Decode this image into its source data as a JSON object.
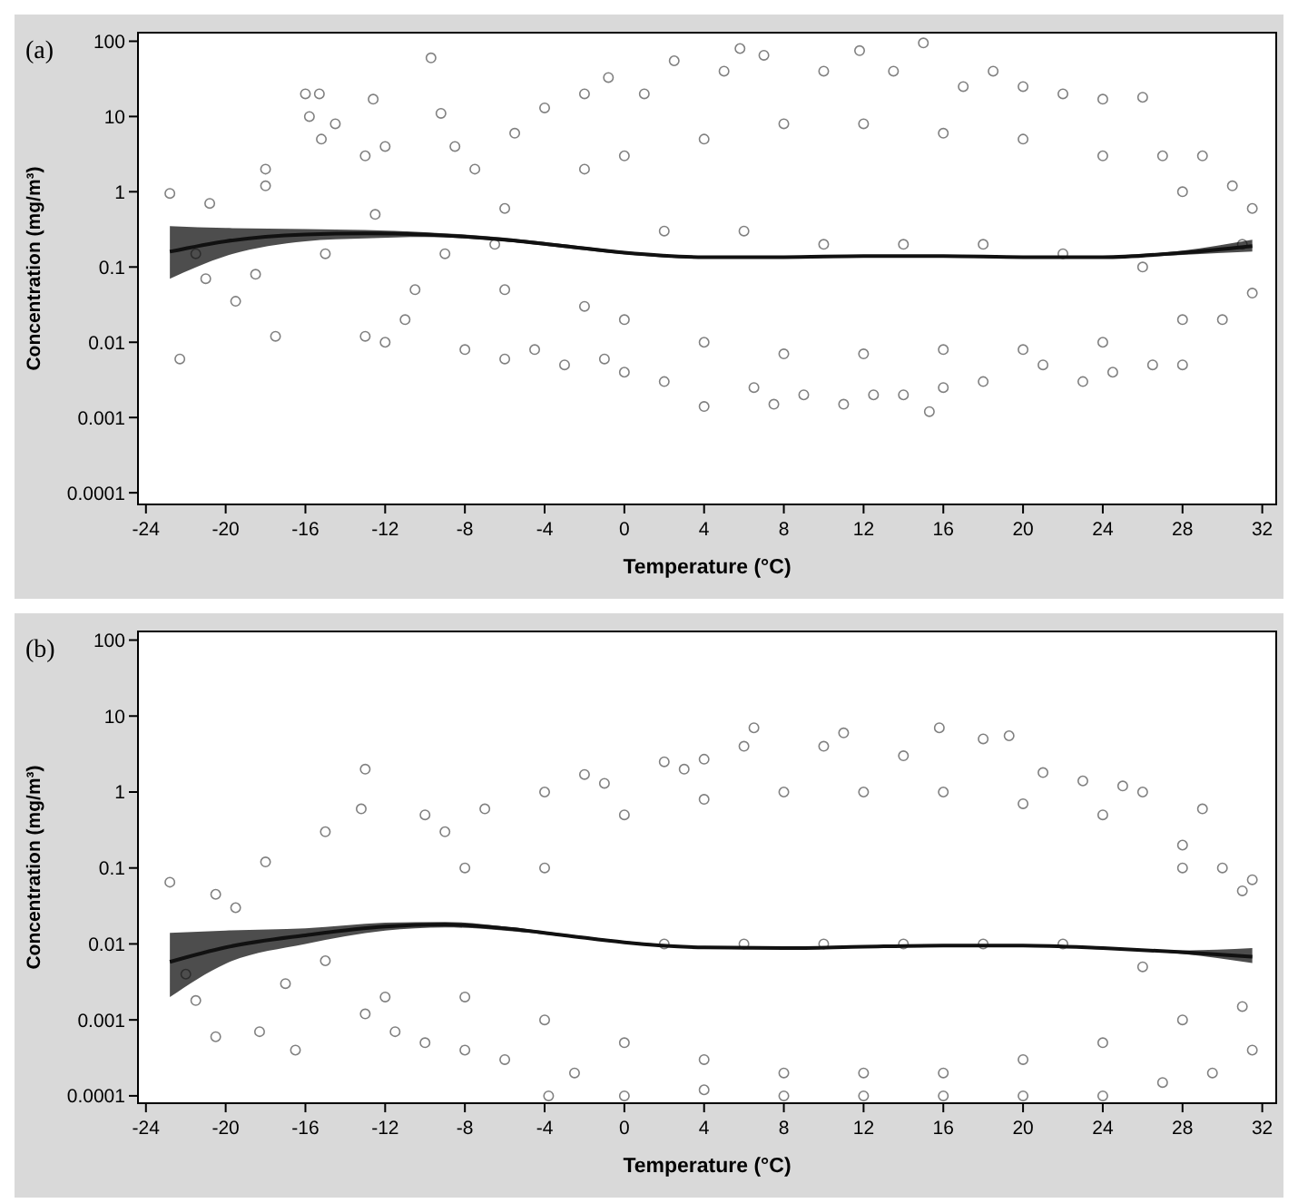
{
  "chart_data": [
    {
      "type": "scatter",
      "title": "(a)",
      "xlabel": "Temperature (°C)",
      "ylabel": "Concentration (mg/m³)",
      "log": "y",
      "xlim": [
        -24.4,
        32.7
      ],
      "xticks": [
        -24,
        -20,
        -16,
        -12,
        -8,
        -4,
        0,
        4,
        8,
        12,
        16,
        20,
        24,
        28,
        32
      ],
      "ylim": [
        7e-05,
        130
      ],
      "yticks": [
        100,
        10,
        1,
        0.1,
        0.01,
        0.001,
        0.0001
      ],
      "series": [
        {
          "marker": "circle",
          "color": "#808080",
          "x": [
            -22.8,
            -22.3,
            -21.5,
            -21,
            -20.8,
            -19.5,
            -18.5,
            -18,
            -18,
            -17.5,
            -16,
            -15.8,
            -15.3,
            -15.2,
            -15,
            -14.5,
            -13,
            -13,
            -12.6,
            -12.5,
            -12,
            -12,
            -11,
            -10.5,
            -9.7,
            -9.2,
            -9,
            -8.5,
            -8,
            -7.5,
            -6.5,
            -6,
            -5.5,
            -4.5,
            -4,
            -3,
            -2,
            -1,
            -0.8,
            0,
            1,
            2,
            2.5,
            4,
            5,
            5.8,
            6.5,
            7,
            7.5,
            9,
            10,
            11,
            11.8,
            12.5,
            13.5,
            14,
            15,
            15.3,
            16,
            17,
            18,
            18.5,
            20,
            21,
            22,
            23,
            24,
            24.5,
            26,
            26.5,
            27,
            28,
            29,
            30,
            30.5,
            31.5,
            31.5,
            31,
            0,
            0,
            4,
            4,
            8,
            8,
            12,
            12,
            16,
            16,
            20,
            20,
            24,
            24,
            28,
            28,
            2,
            6,
            10,
            14,
            18,
            22,
            26,
            -2,
            -2,
            -6,
            -6
          ],
          "values": [
            0.95,
            0.006,
            0.15,
            0.07,
            0.7,
            0.035,
            0.08,
            2,
            1.2,
            0.012,
            20,
            10,
            20,
            5,
            0.15,
            8,
            0.012,
            3,
            17,
            0.5,
            0.01,
            4,
            0.02,
            0.05,
            60,
            11,
            0.15,
            4,
            0.008,
            2,
            0.2,
            0.006,
            6,
            0.008,
            13,
            0.005,
            20,
            0.006,
            33,
            0.004,
            20,
            0.003,
            55,
            0.0014,
            40,
            80,
            0.0025,
            65,
            0.0015,
            0.002,
            40,
            0.0015,
            75,
            0.002,
            40,
            0.002,
            95,
            0.0012,
            0.0025,
            25,
            0.003,
            40,
            25,
            0.005,
            20,
            0.003,
            17,
            0.004,
            18,
            0.005,
            3,
            0.005,
            3,
            0.02,
            1.2,
            0.6,
            0.045,
            0.2,
            3,
            0.02,
            5,
            0.01,
            8,
            0.007,
            8,
            0.007,
            6,
            0.008,
            5,
            0.008,
            3,
            0.01,
            1,
            0.02,
            0.3,
            0.3,
            0.2,
            0.2,
            0.2,
            0.15,
            0.1,
            2,
            0.03,
            0.6,
            0.05
          ]
        },
        {
          "type": "line",
          "color": "#111111",
          "line_style": "solid",
          "x": [
            -22.8,
            -20,
            -16,
            -13,
            -10,
            -6,
            -3,
            0,
            4,
            8,
            12,
            16,
            20,
            24,
            28,
            31.5
          ],
          "values": [
            0.16,
            0.22,
            0.27,
            0.28,
            0.27,
            0.23,
            0.19,
            0.155,
            0.135,
            0.135,
            0.14,
            0.14,
            0.135,
            0.135,
            0.155,
            0.19
          ],
          "lower": [
            0.07,
            0.14,
            0.22,
            0.24,
            0.25,
            0.22,
            0.18,
            0.148,
            0.13,
            0.13,
            0.135,
            0.135,
            0.13,
            0.13,
            0.145,
            0.16
          ],
          "upper": [
            0.35,
            0.33,
            0.32,
            0.31,
            0.29,
            0.245,
            0.2,
            0.162,
            0.14,
            0.14,
            0.145,
            0.145,
            0.14,
            0.14,
            0.165,
            0.23
          ]
        }
      ]
    },
    {
      "type": "scatter",
      "title": "(b)",
      "xlabel": "Temperature (°C)",
      "ylabel": "Concentration (mg/m³)",
      "log": "y",
      "xlim": [
        -24.4,
        32.7
      ],
      "xticks": [
        -24,
        -20,
        -16,
        -12,
        -8,
        -4,
        0,
        4,
        8,
        12,
        16,
        20,
        24,
        28,
        32
      ],
      "ylim": [
        8e-05,
        130
      ],
      "yticks": [
        100,
        10,
        1,
        0.1,
        0.01,
        0.001,
        0.0001
      ],
      "series": [
        {
          "marker": "circle",
          "color": "#808080",
          "x": [
            -22.8,
            -22,
            -21.5,
            -20.5,
            -20.5,
            -19.5,
            -18.3,
            -18,
            -17,
            -16.5,
            -15,
            -15,
            -13,
            -13,
            -13.2,
            -12,
            -11.5,
            -10,
            -10,
            -9,
            -8,
            -7,
            -6,
            -4,
            -3.8,
            -2,
            -2.5,
            -1,
            0,
            2,
            3,
            4,
            4,
            6,
            6.5,
            8,
            10,
            11,
            12,
            14,
            15.8,
            16,
            18,
            19.3,
            20,
            21,
            23,
            24,
            25,
            26,
            27,
            28,
            29,
            29.5,
            30,
            31,
            31.5,
            31.5,
            31,
            0,
            0,
            4,
            4,
            8,
            8,
            12,
            12,
            16,
            16,
            20,
            20,
            24,
            24,
            28,
            28,
            2,
            6,
            10,
            14,
            18,
            22,
            26,
            -4,
            -4,
            -8,
            -8
          ],
          "values": [
            0.065,
            0.004,
            0.0018,
            0.045,
            0.0006,
            0.03,
            0.0007,
            0.12,
            0.003,
            0.0004,
            0.3,
            0.006,
            2,
            0.0012,
            0.6,
            0.002,
            0.0007,
            0.5,
            0.0005,
            0.3,
            0.0004,
            0.6,
            0.0003,
            1,
            0.0001,
            1.7,
            0.0002,
            1.3,
            0.0001,
            2.5,
            2,
            2.7,
            0.00012,
            4,
            7,
            0.0001,
            4,
            6,
            0.0001,
            3,
            7,
            0.0001,
            5,
            5.5,
            0.0001,
            1.8,
            1.4,
            0.0001,
            1.2,
            1,
            0.00015,
            0.2,
            0.6,
            0.0002,
            0.1,
            0.05,
            0.07,
            0.0004,
            0.0015,
            0.5,
            0.0005,
            0.8,
            0.0003,
            1,
            0.0002,
            1,
            0.0002,
            1,
            0.0002,
            0.7,
            0.0003,
            0.5,
            0.0005,
            0.1,
            0.001,
            0.01,
            0.01,
            0.01,
            0.01,
            0.01,
            0.01,
            0.005,
            0.1,
            0.001,
            0.1,
            0.002
          ]
        },
        {
          "type": "line",
          "color": "#111111",
          "line_style": "solid",
          "x": [
            -22.8,
            -20,
            -16,
            -12,
            -9,
            -6,
            -3,
            0,
            4,
            8,
            12,
            16,
            20,
            24,
            28,
            31.5
          ],
          "values": [
            0.0058,
            0.009,
            0.013,
            0.017,
            0.018,
            0.016,
            0.013,
            0.0105,
            0.009,
            0.0088,
            0.0092,
            0.0095,
            0.0095,
            0.0088,
            0.0078,
            0.0068
          ],
          "lower": [
            0.002,
            0.0055,
            0.01,
            0.015,
            0.0165,
            0.015,
            0.0125,
            0.0101,
            0.0087,
            0.0085,
            0.0089,
            0.0092,
            0.0092,
            0.0085,
            0.0074,
            0.0056
          ],
          "upper": [
            0.014,
            0.015,
            0.016,
            0.019,
            0.0195,
            0.017,
            0.0135,
            0.0109,
            0.0093,
            0.0091,
            0.0095,
            0.0098,
            0.0098,
            0.0091,
            0.0082,
            0.0088
          ]
        }
      ]
    }
  ]
}
